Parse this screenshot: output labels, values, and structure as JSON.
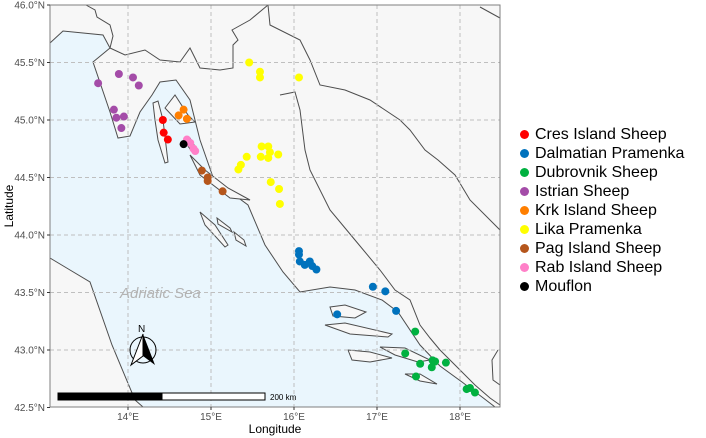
{
  "map": {
    "sea_label": "Adriatic Sea",
    "north_label": "N",
    "scalebar_label": "200 km",
    "xlabel": "Longitude",
    "ylabel": "Latitude",
    "lon_range": [
      13.06,
      18.48
    ],
    "lat_range": [
      42.5,
      46.0
    ],
    "x_ticks": [
      {
        "value": 14,
        "label": "14°E"
      },
      {
        "value": 15,
        "label": "15°E"
      },
      {
        "value": 16,
        "label": "16°E"
      },
      {
        "value": 17,
        "label": "17°E"
      },
      {
        "value": 18,
        "label": "18°E"
      }
    ],
    "y_ticks": [
      {
        "value": 42.5,
        "label": "42.5°N"
      },
      {
        "value": 43.0,
        "label": "43.0°N"
      },
      {
        "value": 43.5,
        "label": "43.5°N"
      },
      {
        "value": 44.0,
        "label": "44.0°N"
      },
      {
        "value": 44.5,
        "label": "44.5°N"
      },
      {
        "value": 45.0,
        "label": "45.0°N"
      },
      {
        "value": 45.5,
        "label": "45.5°N"
      },
      {
        "value": 46.0,
        "label": "46.0°N"
      }
    ],
    "grid": "dashed",
    "colors": {
      "land": "#f7f7f7",
      "sea": "#eaf6fd",
      "coast": "#4d4d4d"
    }
  },
  "legend": {
    "placement": "right",
    "items": [
      {
        "label": "Cres Island Sheep",
        "color": "#ff0000"
      },
      {
        "label": "Dalmatian Pramenka",
        "color": "#0072bd"
      },
      {
        "label": "Dubrovnik Sheep",
        "color": "#00b140"
      },
      {
        "label": "Istrian Sheep",
        "color": "#a44ca8"
      },
      {
        "label": "Krk Island Sheep",
        "color": "#ff7f00"
      },
      {
        "label": "Lika Pramenka",
        "color": "#ffff00"
      },
      {
        "label": "Pag Island Sheep",
        "color": "#b5561c"
      },
      {
        "label": "Rab Island Sheep",
        "color": "#ff80c8"
      },
      {
        "label": "Mouflon",
        "color": "#000000"
      }
    ]
  },
  "chart_data": {
    "type": "scatter",
    "xlabel": "Longitude",
    "ylabel": "Latitude",
    "xlim": [
      13.06,
      18.48
    ],
    "ylim": [
      42.5,
      46.0
    ],
    "series": [
      {
        "name": "Cres Island Sheep",
        "points": [
          [
            14.42,
            45.0
          ],
          [
            14.43,
            44.89
          ],
          [
            14.48,
            44.83
          ]
        ]
      },
      {
        "name": "Dalmatian Pramenka",
        "points": [
          [
            16.06,
            43.86
          ],
          [
            16.06,
            43.83
          ],
          [
            16.07,
            43.77
          ],
          [
            16.13,
            43.74
          ],
          [
            16.19,
            43.77
          ],
          [
            16.22,
            43.73
          ],
          [
            16.27,
            43.7
          ],
          [
            16.95,
            43.55
          ],
          [
            17.1,
            43.51
          ],
          [
            17.23,
            43.34
          ],
          [
            16.52,
            43.31
          ]
        ]
      },
      {
        "name": "Dubrovnik Sheep",
        "points": [
          [
            17.46,
            43.16
          ],
          [
            17.34,
            42.97
          ],
          [
            17.52,
            42.88
          ],
          [
            17.67,
            42.91
          ],
          [
            17.7,
            42.9
          ],
          [
            17.66,
            42.85
          ],
          [
            17.83,
            42.89
          ],
          [
            17.47,
            42.77
          ],
          [
            18.08,
            42.66
          ],
          [
            18.12,
            42.67
          ],
          [
            18.18,
            42.63
          ]
        ]
      },
      {
        "name": "Istrian Sheep",
        "points": [
          [
            13.64,
            45.32
          ],
          [
            13.89,
            45.4
          ],
          [
            14.06,
            45.37
          ],
          [
            14.13,
            45.3
          ],
          [
            13.83,
            45.09
          ],
          [
            13.86,
            45.02
          ],
          [
            13.95,
            45.03
          ],
          [
            13.92,
            44.93
          ]
        ]
      },
      {
        "name": "Krk Island Sheep",
        "points": [
          [
            14.61,
            45.04
          ],
          [
            14.67,
            45.09
          ],
          [
            14.71,
            45.01
          ]
        ]
      },
      {
        "name": "Lika Pramenka",
        "points": [
          [
            15.46,
            45.5
          ],
          [
            15.59,
            45.42
          ],
          [
            15.59,
            45.37
          ],
          [
            16.06,
            45.37
          ],
          [
            15.61,
            44.77
          ],
          [
            15.69,
            44.77
          ],
          [
            15.71,
            44.72
          ],
          [
            15.6,
            44.68
          ],
          [
            15.69,
            44.67
          ],
          [
            15.81,
            44.7
          ],
          [
            15.43,
            44.68
          ],
          [
            15.36,
            44.61
          ],
          [
            15.33,
            44.57
          ],
          [
            15.72,
            44.46
          ],
          [
            15.82,
            44.4
          ],
          [
            15.83,
            44.27
          ]
        ]
      },
      {
        "name": "Pag Island Sheep",
        "points": [
          [
            14.89,
            44.56
          ],
          [
            14.96,
            44.5
          ],
          [
            14.96,
            44.47
          ],
          [
            15.14,
            44.38
          ]
        ]
      },
      {
        "name": "Rab Island Sheep",
        "points": [
          [
            14.71,
            44.83
          ],
          [
            14.75,
            44.8
          ],
          [
            14.79,
            44.75
          ],
          [
            14.81,
            44.73
          ]
        ]
      },
      {
        "name": "Mouflon",
        "points": [
          [
            14.67,
            44.79
          ]
        ]
      }
    ]
  }
}
